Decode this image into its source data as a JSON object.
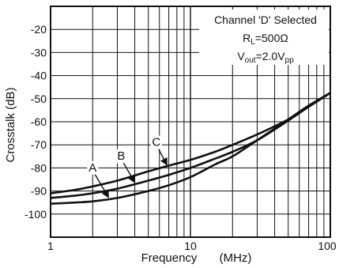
{
  "chart_data": {
    "type": "line",
    "xlabel": "Frequency",
    "xlabel_unit": "(MHz)",
    "ylabel": "Crosstalk (dB)",
    "x_scale": "log",
    "xlim": [
      1,
      100
    ],
    "ylim": [
      -110,
      -10
    ],
    "x_ticks": [
      1,
      10,
      100
    ],
    "x_tick_labels": [
      "1",
      "10",
      "100"
    ],
    "y_ticks": [
      -20,
      -30,
      -40,
      -50,
      -60,
      -70,
      -80,
      -90,
      -100
    ],
    "y_tick_labels": [
      "-20",
      "-30",
      "-40",
      "-50",
      "-60",
      "-70",
      "-80",
      "-90",
      "-100"
    ],
    "grid": true,
    "annotation": {
      "line1": "Channel 'D' Selected",
      "line2_prefix": "R",
      "line2_sub": "L",
      "line2_suffix": "=500Ω",
      "line3_prefix": "V",
      "line3_sub": "out",
      "line3_mid": "=2.0V",
      "line3_sub2": "pp"
    },
    "series": [
      {
        "name": "A",
        "x": [
          1,
          1.5,
          2,
          3,
          5,
          7,
          10,
          15,
          20,
          30,
          50,
          70,
          100
        ],
        "y": [
          -95.5,
          -95,
          -94.5,
          -93,
          -90,
          -87.5,
          -84,
          -78.5,
          -75,
          -68,
          -59,
          -53,
          -47.5
        ],
        "label_x": 2.0,
        "label_y": -81.5,
        "arrow_x": 2.6,
        "arrow_y": -93.5
      },
      {
        "name": "B",
        "x": [
          1,
          1.5,
          2,
          3,
          5,
          7,
          10,
          15,
          20,
          30,
          50,
          70,
          100
        ],
        "y": [
          -93,
          -92,
          -91,
          -89,
          -85.5,
          -83,
          -80,
          -76,
          -73,
          -68,
          -59.5,
          -53.5,
          -47.5
        ],
        "label_x": 3.2,
        "label_y": -76.5,
        "arrow_x": 4.0,
        "arrow_y": -87
      },
      {
        "name": "C",
        "x": [
          1,
          1.5,
          2,
          3,
          5,
          7,
          10,
          15,
          20,
          30,
          50,
          70,
          100
        ],
        "y": [
          -91,
          -89.5,
          -88,
          -85.5,
          -81.5,
          -79,
          -76.5,
          -73,
          -70,
          -65.5,
          -59,
          -53.5,
          -47.5
        ],
        "label_x": 5.7,
        "label_y": -70.5,
        "arrow_x": 6.8,
        "arrow_y": -79.5
      }
    ]
  }
}
